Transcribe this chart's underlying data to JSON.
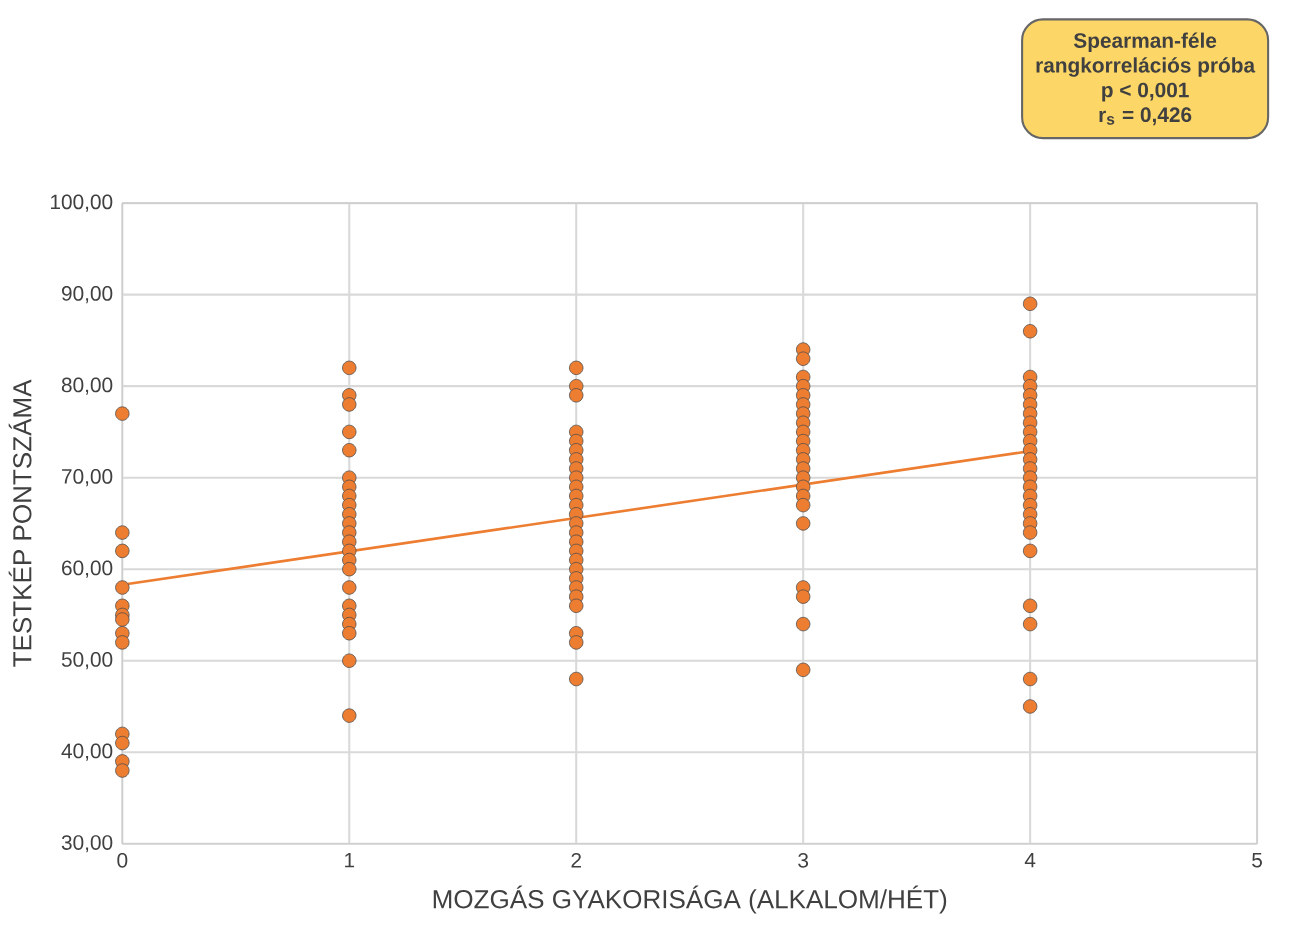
{
  "chart_data": {
    "type": "scatter",
    "xlabel": "MOZGÁS GYAKORISÁGA (ALKALOM/HÉT)",
    "ylabel": "TESTKÉP PONTSZÁMA",
    "annotations": [
      "Spearman-féle",
      "rangkorrelációs próba",
      "p < 0,001",
      "r$_{s}$ = 0,426"
    ],
    "xlim": [
      0,
      5
    ],
    "ylim": [
      30,
      100
    ],
    "xticks": [
      0,
      1,
      2,
      3,
      4,
      5
    ],
    "yticks": [
      {
        "value": 30,
        "label": "30,00"
      },
      {
        "value": 40,
        "label": "40,00"
      },
      {
        "value": 50,
        "label": "50,00"
      },
      {
        "value": 60,
        "label": "60,00"
      },
      {
        "value": 70,
        "label": "70,00"
      },
      {
        "value": 80,
        "label": "80,00"
      },
      {
        "value": 90,
        "label": "90,00"
      },
      {
        "value": 100,
        "label": "100,00"
      }
    ],
    "grid": true,
    "series": [
      {
        "color": "#ed7d31",
        "marker": "circle",
        "x": [
          0,
          0,
          0,
          0,
          0,
          0,
          0,
          0,
          0,
          0,
          0,
          0,
          0,
          1,
          1,
          1,
          1,
          1,
          1,
          1,
          1,
          1,
          1,
          1,
          1,
          1,
          1,
          1,
          1,
          1,
          1,
          1,
          1,
          1,
          1,
          1,
          2,
          2,
          2,
          2,
          2,
          2,
          2,
          2,
          2,
          2,
          2,
          2,
          2,
          2,
          2,
          2,
          2,
          2,
          2,
          2,
          2,
          2,
          2,
          2,
          2,
          2,
          3,
          3,
          3,
          3,
          3,
          3,
          3,
          3,
          3,
          3,
          3,
          3,
          3,
          3,
          3,
          3,
          3,
          3,
          3,
          3,
          3,
          3,
          4,
          4,
          4,
          4,
          4,
          4,
          4,
          4,
          4,
          4,
          4,
          4,
          4,
          4,
          4,
          4,
          4,
          4,
          4,
          4,
          4,
          4,
          4,
          4,
          4
        ],
        "values": [
          77,
          64,
          62,
          58,
          56,
          55,
          54.5,
          53,
          52,
          42,
          41,
          39,
          38,
          82,
          79,
          78,
          75,
          73,
          70,
          69,
          68,
          67,
          66,
          65,
          64,
          63,
          62,
          61,
          60,
          58,
          56,
          55,
          54,
          53,
          50,
          44,
          82,
          80,
          79,
          75,
          74,
          73,
          72,
          71,
          70,
          69,
          68,
          67,
          66,
          65,
          64,
          63,
          62,
          61,
          60,
          59,
          58,
          57,
          56,
          53,
          52,
          48,
          84,
          83,
          81,
          80,
          79,
          78,
          77,
          76,
          75,
          74,
          73,
          72,
          71,
          70,
          69,
          68,
          67,
          65,
          58,
          57,
          54,
          49,
          89,
          86,
          81,
          80,
          79,
          78,
          77,
          76,
          75,
          74,
          73,
          72,
          71,
          70,
          69,
          68,
          67,
          66,
          65,
          64,
          62,
          56,
          54,
          48,
          45
        ]
      },
      {
        "type": "line",
        "color": "#ed7d31",
        "marker": "none",
        "line_style": "solid",
        "x": [
          0,
          4
        ],
        "values": [
          58.3,
          72.9
        ]
      }
    ]
  }
}
